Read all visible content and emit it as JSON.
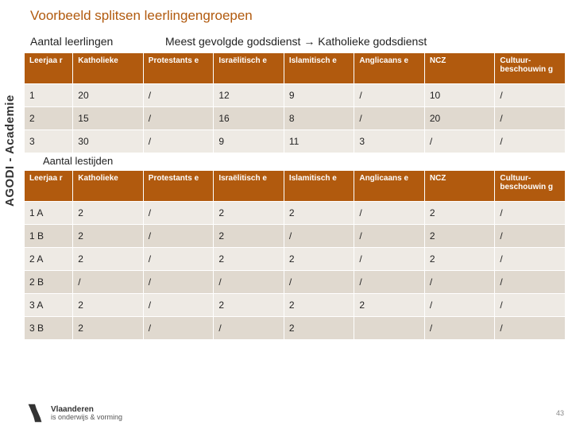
{
  "sidebar_text": "AGODI - Academie",
  "title": "Voorbeeld splitsen leerlingengroepen",
  "subtitle_left": "Aantal leerlingen",
  "subtitle_right": "Meest gevolgde godsdienst → Katholieke godsdienst",
  "table1": {
    "headers": [
      "Leerjaa r",
      "Katholieke",
      "Protestants e",
      "Israëlitisch e",
      "Islamitisch e",
      "Anglicaans e",
      "NCZ",
      "Cultuur-beschouwin g"
    ],
    "rows": [
      [
        "1",
        "20",
        "/",
        "12",
        "9",
        "/",
        "10",
        "/"
      ],
      [
        "2",
        "15",
        "/",
        "16",
        "8",
        "/",
        "20",
        "/"
      ],
      [
        "3",
        "30",
        "/",
        "9",
        "11",
        "3",
        "/",
        "/"
      ]
    ]
  },
  "section2_label": "Aantal lestijden",
  "table2": {
    "headers": [
      "Leerjaa r",
      "Katholieke",
      "Protestants e",
      "Israëlitisch e",
      "Islamitisch e",
      "Anglicaans e",
      "NCZ",
      "Cultuur-beschouwin g"
    ],
    "rows": [
      [
        "1 A",
        "2",
        "/",
        "2",
        "2",
        "/",
        "2",
        "/"
      ],
      [
        "1 B",
        "2",
        "/",
        "2",
        "/",
        "/",
        "2",
        "/"
      ],
      [
        "2 A",
        "2",
        "/",
        "2",
        "2",
        "/",
        "2",
        "/"
      ],
      [
        "2 B",
        "/",
        "/",
        "/",
        "/",
        "/",
        "/",
        "/"
      ],
      [
        "3 A",
        "2",
        "/",
        "2",
        "2",
        "2",
        "/",
        "/"
      ],
      [
        "3 B",
        "2",
        "/",
        "/",
        "2",
        "",
        "/",
        "/"
      ]
    ]
  },
  "footer": {
    "brand_top": "Vlaanderen",
    "brand_bottom": "is onderwijs & vorming",
    "page": "43"
  },
  "colors": {
    "accent": "#b15a0e",
    "row_odd": "#eeeae4",
    "row_even": "#e0d9cf",
    "header_text": "#ffffff",
    "body_text": "#222222"
  }
}
